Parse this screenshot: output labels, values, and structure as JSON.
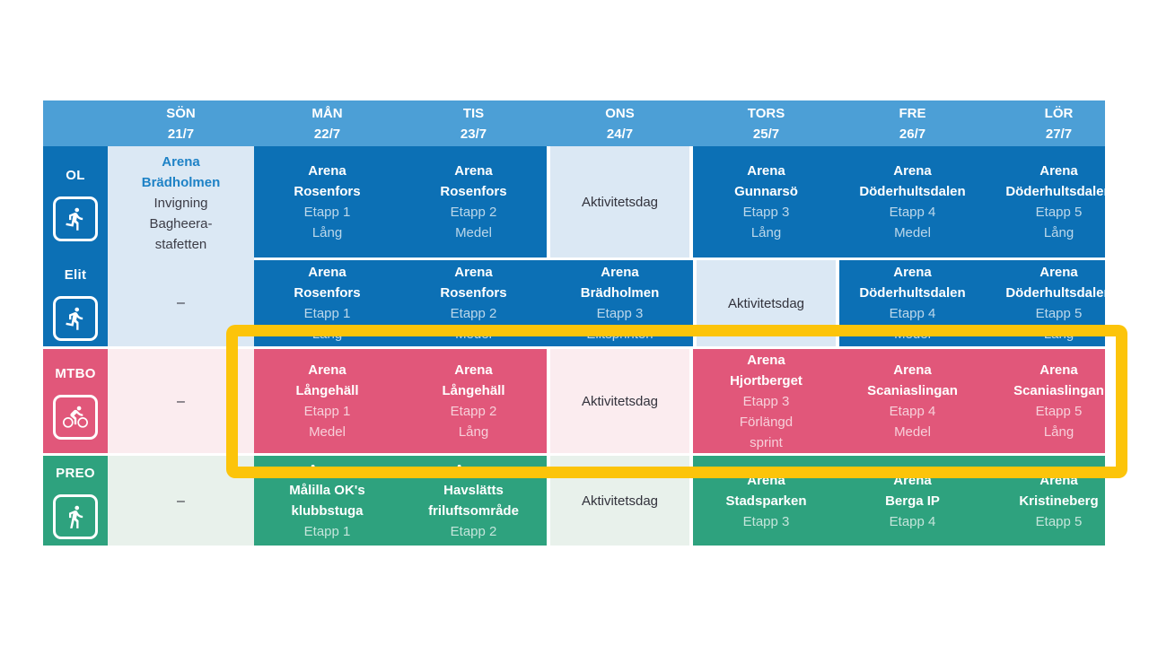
{
  "page": {
    "background": "#ffffff",
    "description": "Event program week schedule table"
  },
  "colors": {
    "header_blue": "#4C9FD6",
    "ol_blue": "#0C70B5",
    "mtbo_pink": "#E1577A",
    "preo_green": "#2EA27E",
    "light_blue": "#DBE8F4",
    "light_pink": "#FBECEF",
    "light_green": "#E8F1EB",
    "highlight_yellow": "#FCC40A",
    "arena_link_blue": "#1E82C6",
    "dark_text": "#32323C"
  },
  "highlight": {
    "type": "highlight-rectangle",
    "color": "#FCC40A",
    "around_row": "MTBO"
  },
  "schedule": {
    "days": [
      {
        "key": "son",
        "label": "SÖN",
        "date": "21/7"
      },
      {
        "key": "man",
        "label": "MÅN",
        "date": "22/7"
      },
      {
        "key": "tis",
        "label": "TIS",
        "date": "23/7"
      },
      {
        "key": "ons",
        "label": "ONS",
        "date": "24/7"
      },
      {
        "key": "tors",
        "label": "TORS",
        "date": "25/7"
      },
      {
        "key": "fre",
        "label": "FRE",
        "date": "26/7"
      },
      {
        "key": "lor",
        "label": "LÖR",
        "date": "27/7"
      }
    ],
    "rows": [
      {
        "key": "ol",
        "label": "OL",
        "icon": "runner-icon",
        "theme": "blue",
        "light_theme": "light-blue",
        "cells": [
          {
            "type": "opening",
            "title_lines": [
              "Arena",
              "Brädholmen"
            ],
            "body_lines": [
              "Invigning",
              "Bagheera-",
              "stafetten"
            ]
          },
          {
            "type": "event",
            "lines_bold": [
              "Arena",
              "Rosenfors"
            ],
            "lines_detail": [
              "Etapp 1",
              "Lång"
            ]
          },
          {
            "type": "event",
            "lines_bold": [
              "Arena",
              "Rosenfors"
            ],
            "lines_detail": [
              "Etapp 2",
              "Medel"
            ]
          },
          {
            "type": "activity",
            "label": "Aktivitetsdag"
          },
          {
            "type": "event",
            "lines_bold": [
              "Arena",
              "Gunnarsö"
            ],
            "lines_detail": [
              "Etapp 3",
              "Lång"
            ]
          },
          {
            "type": "event",
            "lines_bold": [
              "Arena",
              "Döderhultsdalen"
            ],
            "lines_detail": [
              "Etapp 4",
              "Medel"
            ]
          },
          {
            "type": "event",
            "lines_bold": [
              "Arena",
              "Döderhultsdalen"
            ],
            "lines_detail": [
              "Etapp 5",
              "Lång"
            ]
          }
        ]
      },
      {
        "key": "elit",
        "label": "Elit",
        "icon": "runner-icon",
        "theme": "blue",
        "light_theme": "light-blue",
        "cells": [
          {
            "type": "none",
            "label": "–"
          },
          {
            "type": "event",
            "lines_bold": [
              "Arena",
              "Rosenfors"
            ],
            "lines_detail": [
              "Etapp 1",
              "Lång"
            ]
          },
          {
            "type": "event",
            "lines_bold": [
              "Arena",
              "Rosenfors"
            ],
            "lines_detail": [
              "Etapp 2",
              "Medel"
            ]
          },
          {
            "type": "event",
            "lines_bold": [
              "Arena",
              "Brädholmen"
            ],
            "lines_detail": [
              "Etapp 3",
              "Elitsprinten"
            ]
          },
          {
            "type": "activity",
            "label": "Aktivitetsdag"
          },
          {
            "type": "event",
            "lines_bold": [
              "Arena",
              "Döderhultsdalen"
            ],
            "lines_detail": [
              "Etapp 4",
              "Medel"
            ]
          },
          {
            "type": "event",
            "lines_bold": [
              "Arena",
              "Döderhultsdalen"
            ],
            "lines_detail": [
              "Etapp 5",
              "Lång"
            ]
          }
        ]
      },
      {
        "key": "mtbo",
        "label": "MTBO",
        "icon": "cyclist-icon",
        "theme": "pink",
        "light_theme": "light-pink",
        "cells": [
          {
            "type": "none",
            "label": "–"
          },
          {
            "type": "event",
            "lines_bold": [
              "Arena",
              "Långehäll"
            ],
            "lines_detail": [
              "Etapp 1",
              "Medel"
            ]
          },
          {
            "type": "event",
            "lines_bold": [
              "Arena",
              "Långehäll"
            ],
            "lines_detail": [
              "Etapp 2",
              "Lång"
            ]
          },
          {
            "type": "activity",
            "label": "Aktivitetsdag"
          },
          {
            "type": "event",
            "lines_bold": [
              "Arena",
              "Hjortberget"
            ],
            "lines_detail": [
              "Etapp 3",
              "Förlängd",
              "sprint"
            ]
          },
          {
            "type": "event",
            "lines_bold": [
              "Arena",
              "Scaniaslingan"
            ],
            "lines_detail": [
              "Etapp 4",
              "Medel"
            ]
          },
          {
            "type": "event",
            "lines_bold": [
              "Arena",
              "Scaniaslingan"
            ],
            "lines_detail": [
              "Etapp 5",
              "Lång"
            ]
          }
        ]
      },
      {
        "key": "preo",
        "label": "PREO",
        "icon": "walker-icon",
        "theme": "green",
        "light_theme": "light-green",
        "cells": [
          {
            "type": "none",
            "label": "–"
          },
          {
            "type": "event",
            "lines_bold": [
              "Arena",
              "Målilla OK's",
              "klubbstuga"
            ],
            "lines_detail": [
              "Etapp 1"
            ]
          },
          {
            "type": "event",
            "lines_bold": [
              "Arena",
              "Havslätts",
              "friluftsområde"
            ],
            "lines_detail": [
              "Etapp 2"
            ]
          },
          {
            "type": "activity",
            "label": "Aktivitetsdag"
          },
          {
            "type": "event",
            "lines_bold": [
              "Arena",
              "Stadsparken"
            ],
            "lines_detail": [
              "Etapp 3"
            ]
          },
          {
            "type": "event",
            "lines_bold": [
              "Arena",
              "Berga IP"
            ],
            "lines_detail": [
              "Etapp 4"
            ]
          },
          {
            "type": "event",
            "lines_bold": [
              "Arena",
              "Kristineberg"
            ],
            "lines_detail": [
              "Etapp 5"
            ]
          }
        ]
      }
    ]
  }
}
